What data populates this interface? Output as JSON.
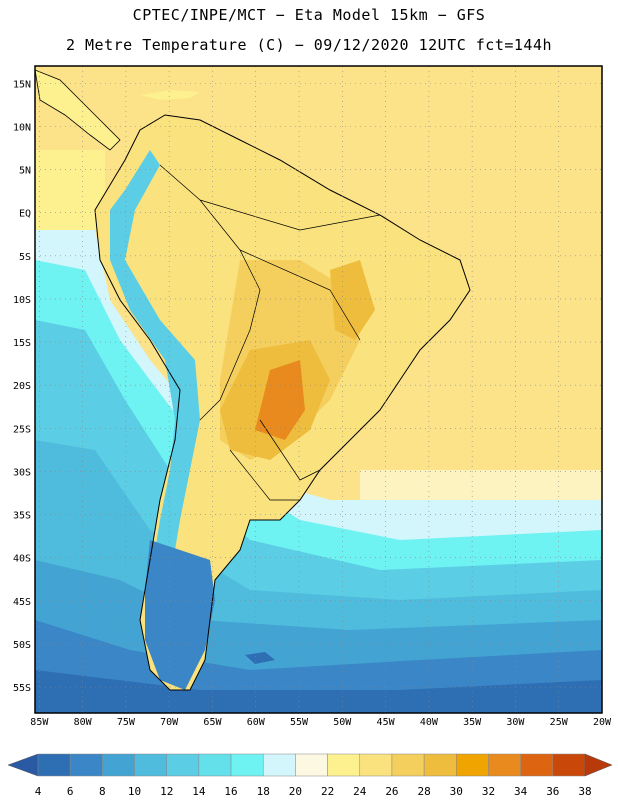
{
  "header": {
    "line1": "CPTEC/INPE/MCT −  Eta Model 15km − GFS",
    "line2": "2 Metre Temperature (C) − 09/12/2020 12UTC fct=144h"
  },
  "map": {
    "lat_labels": [
      "15N",
      "10N",
      "5N",
      "EQ",
      "5S",
      "10S",
      "15S",
      "20S",
      "25S",
      "30S",
      "35S",
      "40S",
      "45S",
      "50S",
      "55S"
    ],
    "lat_values": [
      15,
      10,
      5,
      0,
      -5,
      -10,
      -15,
      -20,
      -25,
      -30,
      -35,
      -40,
      -45,
      -50,
      -55
    ],
    "lon_labels": [
      "85W",
      "80W",
      "75W",
      "70W",
      "65W",
      "60W",
      "55W",
      "50W",
      "45W",
      "40W",
      "35W",
      "30W",
      "25W",
      "20W"
    ],
    "lon_values": [
      -85,
      -80,
      -75,
      -70,
      -65,
      -60,
      -55,
      -50,
      -45,
      -40,
      -35,
      -30,
      -25,
      -20
    ],
    "extent": {
      "lon_min": -85.5,
      "lon_max": -20,
      "lat_min": -58,
      "lat_max": 17
    }
  },
  "legend": {
    "labels": [
      "4",
      "6",
      "8",
      "10",
      "12",
      "14",
      "16",
      "18",
      "20",
      "22",
      "24",
      "26",
      "28",
      "30",
      "32",
      "34",
      "36",
      "38"
    ],
    "colors": [
      "#2a5aa3",
      "#2e6eb3",
      "#3a86c6",
      "#43a3d3",
      "#4fbcdd",
      "#5bcde4",
      "#63e0ea",
      "#6ff2f2",
      "#d2f6fb",
      "#fdf8e2",
      "#fdf08e",
      "#fae27e",
      "#f4cf5d",
      "#eebd3d",
      "#f0a400",
      "#e88a1e",
      "#dd6410",
      "#c84709",
      "#b83a0a"
    ]
  }
}
